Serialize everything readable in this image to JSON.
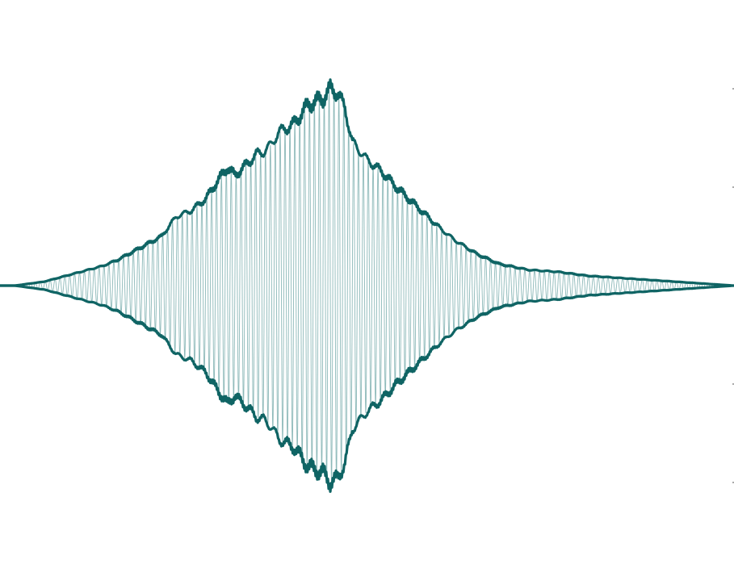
{
  "chart_data": {
    "type": "line",
    "title": "",
    "xlabel": "",
    "ylabel": "",
    "xlim": [
      0,
      100
    ],
    "ylim": [
      -1.1,
      1.1
    ],
    "grid": false,
    "legend": "none",
    "colors": {
      "signal": "#2f7f80",
      "envelope": "#0f6464"
    },
    "series": [
      {
        "x": [
          0,
          2,
          4,
          6,
          8,
          10,
          12,
          14,
          16,
          17,
          18,
          20,
          21,
          22,
          23,
          24,
          26,
          28,
          30,
          31,
          32,
          34,
          35,
          36,
          37,
          38,
          39,
          40,
          41,
          42,
          44,
          45,
          46,
          47,
          48,
          50,
          52,
          54,
          56,
          58,
          60,
          62,
          65,
          68,
          72,
          76,
          80,
          84,
          88,
          92,
          96,
          100
        ],
        "upper": [
          0.0,
          0.0,
          0.01,
          0.02,
          0.04,
          0.06,
          0.08,
          0.1,
          0.13,
          0.15,
          0.17,
          0.21,
          0.23,
          0.25,
          0.3,
          0.35,
          0.38,
          0.44,
          0.55,
          0.6,
          0.56,
          0.63,
          0.67,
          0.68,
          0.72,
          0.78,
          0.8,
          0.82,
          0.87,
          0.92,
          0.95,
          1.0,
          0.98,
          0.9,
          0.73,
          0.64,
          0.58,
          0.5,
          0.43,
          0.36,
          0.29,
          0.23,
          0.16,
          0.11,
          0.08,
          0.07,
          0.05,
          0.04,
          0.03,
          0.02,
          0.01,
          0.0
        ],
        "lower": [
          0.0,
          0.0,
          -0.01,
          -0.02,
          -0.04,
          -0.06,
          -0.08,
          -0.1,
          -0.13,
          -0.15,
          -0.17,
          -0.21,
          -0.23,
          -0.25,
          -0.3,
          -0.35,
          -0.38,
          -0.44,
          -0.55,
          -0.6,
          -0.56,
          -0.63,
          -0.67,
          -0.68,
          -0.72,
          -0.78,
          -0.8,
          -0.82,
          -0.87,
          -0.92,
          -0.95,
          -1.0,
          -0.98,
          -0.9,
          -0.73,
          -0.64,
          -0.58,
          -0.5,
          -0.43,
          -0.36,
          -0.29,
          -0.23,
          -0.16,
          -0.11,
          -0.08,
          -0.07,
          -0.05,
          -0.04,
          -0.03,
          -0.02,
          -0.01,
          0.0
        ]
      }
    ]
  }
}
